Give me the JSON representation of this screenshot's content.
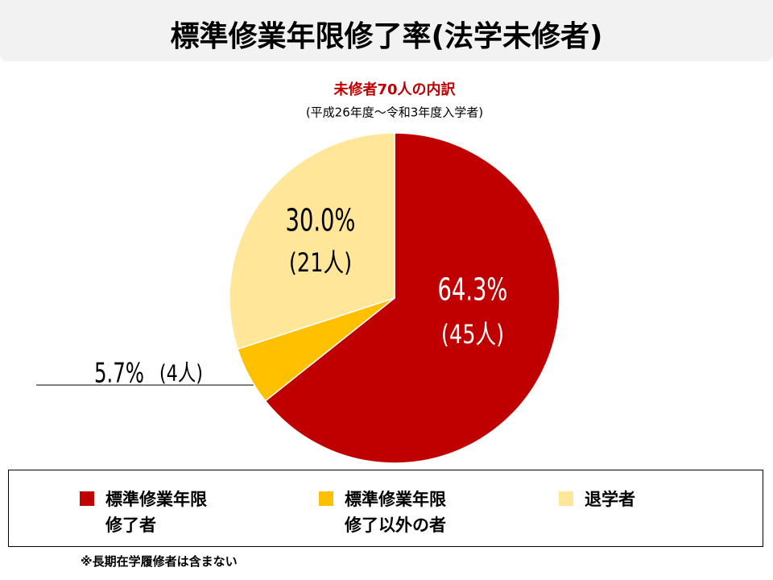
{
  "chart_data": {
    "type": "pie",
    "title": "標準修業年限修了率(法学未修者)",
    "subtitle": "未修者70人の内訳",
    "caption": "(平成26年度～令和3年度入学者)",
    "categories": [
      "標準修業年限修了者",
      "標準修業年限修了以外の者",
      "退学者"
    ],
    "values": [
      64.3,
      5.7,
      30.0
    ],
    "value_labels": [
      "64.3%",
      "5.7%",
      "30.0%"
    ],
    "count_labels": [
      "(45人)",
      "(4人)",
      "(21人)"
    ],
    "colors": [
      "#c00000",
      "#ffc000",
      "#ffe699"
    ],
    "footnote": "※長期在学履修者は含まない"
  }
}
